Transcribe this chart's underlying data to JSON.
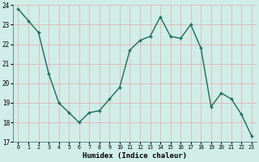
{
  "x": [
    0,
    1,
    2,
    3,
    4,
    5,
    6,
    7,
    8,
    9,
    10,
    11,
    12,
    13,
    14,
    15,
    16,
    17,
    18,
    19,
    20,
    21,
    22,
    23
  ],
  "y": [
    23.8,
    23.2,
    22.6,
    20.5,
    19.0,
    18.5,
    18.0,
    18.5,
    18.6,
    19.2,
    19.8,
    21.7,
    22.2,
    22.4,
    23.4,
    22.4,
    22.3,
    23.0,
    21.8,
    18.8,
    19.5,
    19.2,
    18.4,
    17.3
  ],
  "xlabel": "Humidex (Indice chaleur)",
  "ylim": [
    17,
    24
  ],
  "yticks": [
    17,
    18,
    19,
    20,
    21,
    22,
    23,
    24
  ],
  "xticks": [
    0,
    1,
    2,
    3,
    4,
    5,
    6,
    7,
    8,
    9,
    10,
    11,
    12,
    13,
    14,
    15,
    16,
    17,
    18,
    19,
    20,
    21,
    22,
    23
  ],
  "line_color": "#1a6b5a",
  "marker": "+",
  "bg_color": "#d0ede8",
  "grid_color": "#e8aaaa",
  "xlim": [
    -0.5,
    23.5
  ]
}
